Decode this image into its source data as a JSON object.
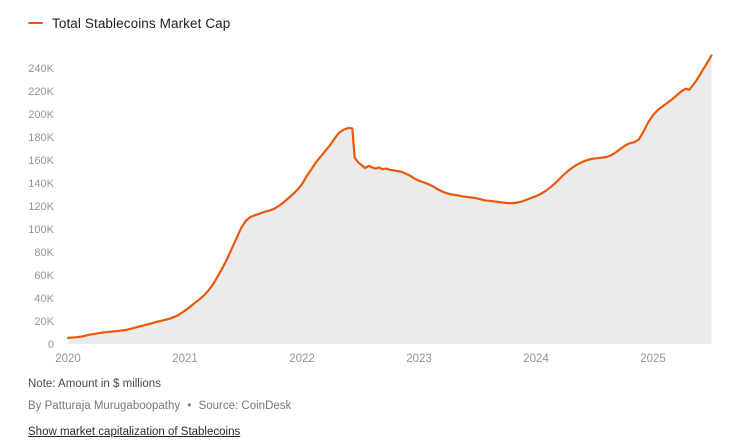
{
  "notes": {
    "note": "Note: Amount in $ millions",
    "byline": "By Patturaja Murugaboopathy",
    "separator": "•",
    "source": "Source: CoinDesk",
    "caption_link": "Show market capitalization of Stablecoins"
  },
  "chart_data": {
    "type": "area",
    "title": "Total Stablecoins Market Cap",
    "unit_note": "Amount in $ millions",
    "line_color": "#e9590c",
    "fill_color": "#ebebeb",
    "grid": false,
    "legend_position": "top-left",
    "xlabel": "",
    "ylabel": "",
    "xlim": [
      2020.0,
      2025.55
    ],
    "ylim": [
      0,
      260000
    ],
    "x_ticks": {
      "values": [
        2020,
        2021,
        2022,
        2023,
        2024,
        2025
      ],
      "labels": [
        "2020",
        "2021",
        "2022",
        "2023",
        "2024",
        "2025"
      ]
    },
    "y_ticks": {
      "values": [
        0,
        20000,
        40000,
        60000,
        80000,
        100000,
        120000,
        140000,
        160000,
        180000,
        200000,
        220000,
        240000
      ],
      "labels": [
        "0",
        "20K",
        "40K",
        "60K",
        "80K",
        "100K",
        "120K",
        "140K",
        "160K",
        "180K",
        "200K",
        "220K",
        "240K"
      ]
    },
    "x_format": "decimal year",
    "points": [
      [
        2020.0,
        5300
      ],
      [
        2020.06,
        5800
      ],
      [
        2020.12,
        6500
      ],
      [
        2020.18,
        8000
      ],
      [
        2020.25,
        9200
      ],
      [
        2020.31,
        10200
      ],
      [
        2020.37,
        10800
      ],
      [
        2020.44,
        11500
      ],
      [
        2020.5,
        12300
      ],
      [
        2020.56,
        13800
      ],
      [
        2020.62,
        15500
      ],
      [
        2020.69,
        17200
      ],
      [
        2020.75,
        19000
      ],
      [
        2020.81,
        20500
      ],
      [
        2020.87,
        22000
      ],
      [
        2020.94,
        25000
      ],
      [
        2021.0,
        29000
      ],
      [
        2021.04,
        32000
      ],
      [
        2021.08,
        35500
      ],
      [
        2021.12,
        38500
      ],
      [
        2021.16,
        42000
      ],
      [
        2021.2,
        46500
      ],
      [
        2021.24,
        52000
      ],
      [
        2021.28,
        59000
      ],
      [
        2021.32,
        66000
      ],
      [
        2021.36,
        74000
      ],
      [
        2021.4,
        83000
      ],
      [
        2021.44,
        92000
      ],
      [
        2021.48,
        101000
      ],
      [
        2021.52,
        107000
      ],
      [
        2021.56,
        110500
      ],
      [
        2021.6,
        112000
      ],
      [
        2021.64,
        113500
      ],
      [
        2021.68,
        115000
      ],
      [
        2021.72,
        116000
      ],
      [
        2021.76,
        117500
      ],
      [
        2021.8,
        120000
      ],
      [
        2021.84,
        123000
      ],
      [
        2021.88,
        126500
      ],
      [
        2021.92,
        130000
      ],
      [
        2021.96,
        134000
      ],
      [
        2022.0,
        139000
      ],
      [
        2022.04,
        146000
      ],
      [
        2022.08,
        152000
      ],
      [
        2022.12,
        158000
      ],
      [
        2022.16,
        163000
      ],
      [
        2022.2,
        168000
      ],
      [
        2022.24,
        173000
      ],
      [
        2022.28,
        179000
      ],
      [
        2022.32,
        184000
      ],
      [
        2022.36,
        186500
      ],
      [
        2022.4,
        188000
      ],
      [
        2022.43,
        187500
      ],
      [
        2022.45,
        162000
      ],
      [
        2022.48,
        158000
      ],
      [
        2022.51,
        155500
      ],
      [
        2022.54,
        153000
      ],
      [
        2022.57,
        155000
      ],
      [
        2022.6,
        153500
      ],
      [
        2022.63,
        152500
      ],
      [
        2022.66,
        153500
      ],
      [
        2022.69,
        152000
      ],
      [
        2022.72,
        152500
      ],
      [
        2022.75,
        151500
      ],
      [
        2022.78,
        151000
      ],
      [
        2022.81,
        150500
      ],
      [
        2022.84,
        150000
      ],
      [
        2022.87,
        149000
      ],
      [
        2022.9,
        147500
      ],
      [
        2022.93,
        146000
      ],
      [
        2022.96,
        144000
      ],
      [
        2023.0,
        142000
      ],
      [
        2023.04,
        140500
      ],
      [
        2023.08,
        139000
      ],
      [
        2023.12,
        137000
      ],
      [
        2023.16,
        134500
      ],
      [
        2023.2,
        132500
      ],
      [
        2023.24,
        131000
      ],
      [
        2023.28,
        130000
      ],
      [
        2023.32,
        129500
      ],
      [
        2023.36,
        128500
      ],
      [
        2023.4,
        128000
      ],
      [
        2023.44,
        127500
      ],
      [
        2023.48,
        127000
      ],
      [
        2023.52,
        126000
      ],
      [
        2023.56,
        125000
      ],
      [
        2023.6,
        124500
      ],
      [
        2023.64,
        124000
      ],
      [
        2023.68,
        123500
      ],
      [
        2023.72,
        123000
      ],
      [
        2023.76,
        122500
      ],
      [
        2023.8,
        122500
      ],
      [
        2023.84,
        123000
      ],
      [
        2023.88,
        124000
      ],
      [
        2023.92,
        125500
      ],
      [
        2023.96,
        127000
      ],
      [
        2024.0,
        128500
      ],
      [
        2024.04,
        130500
      ],
      [
        2024.08,
        133000
      ],
      [
        2024.12,
        136000
      ],
      [
        2024.16,
        139500
      ],
      [
        2024.2,
        143500
      ],
      [
        2024.24,
        147500
      ],
      [
        2024.28,
        151000
      ],
      [
        2024.32,
        154000
      ],
      [
        2024.36,
        156500
      ],
      [
        2024.4,
        158500
      ],
      [
        2024.44,
        160000
      ],
      [
        2024.48,
        161000
      ],
      [
        2024.52,
        161500
      ],
      [
        2024.56,
        162000
      ],
      [
        2024.6,
        162500
      ],
      [
        2024.64,
        164000
      ],
      [
        2024.68,
        166500
      ],
      [
        2024.72,
        169500
      ],
      [
        2024.76,
        172500
      ],
      [
        2024.8,
        174500
      ],
      [
        2024.84,
        175500
      ],
      [
        2024.88,
        178000
      ],
      [
        2024.92,
        185000
      ],
      [
        2024.96,
        193000
      ],
      [
        2025.0,
        199000
      ],
      [
        2025.04,
        203500
      ],
      [
        2025.08,
        206500
      ],
      [
        2025.12,
        209500
      ],
      [
        2025.16,
        212500
      ],
      [
        2025.2,
        216000
      ],
      [
        2025.24,
        219500
      ],
      [
        2025.28,
        222000
      ],
      [
        2025.31,
        221000
      ],
      [
        2025.34,
        225000
      ],
      [
        2025.37,
        229000
      ],
      [
        2025.4,
        234000
      ],
      [
        2025.43,
        239000
      ],
      [
        2025.46,
        244000
      ],
      [
        2025.48,
        247500
      ],
      [
        2025.5,
        251000
      ]
    ]
  }
}
